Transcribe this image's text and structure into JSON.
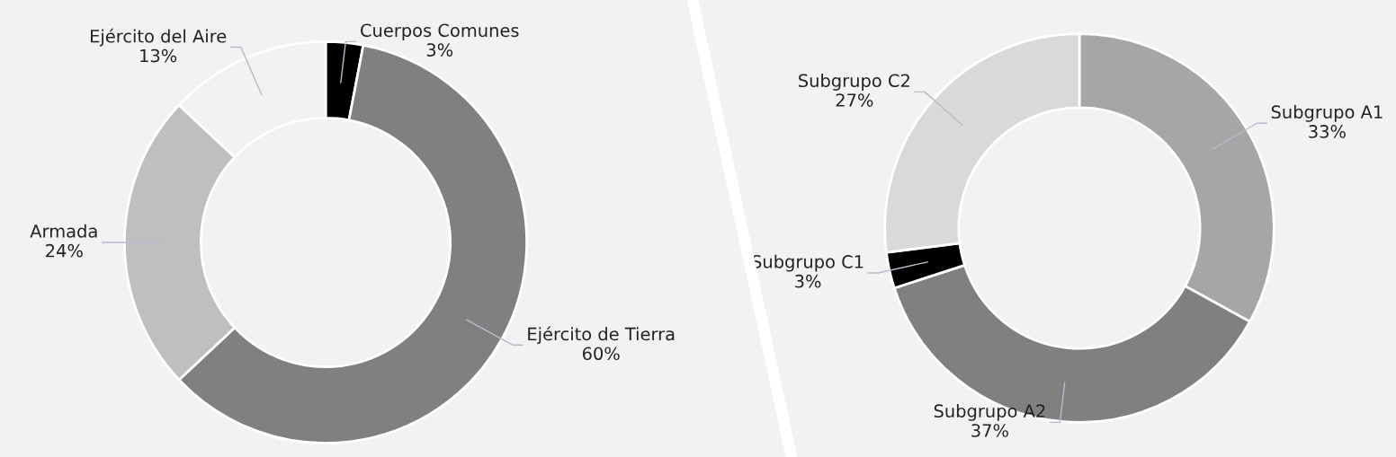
{
  "chart_data": [
    {
      "type": "donut",
      "categories": [
        "Cuerpos Comunes",
        "Ejército de Tierra",
        "Armada",
        "Ejército del Aire"
      ],
      "values": [
        3,
        60,
        24,
        13
      ],
      "value_labels": [
        "3%",
        "60%",
        "24%",
        "13%"
      ],
      "colors": [
        "#000000",
        "#808080",
        "#bfbfbf",
        "#f2f2f2"
      ],
      "legend": false
    },
    {
      "type": "donut",
      "categories": [
        "Subgrupo A1",
        "Subgrupo A2",
        "Subgrupo C1",
        "Subgrupo C2"
      ],
      "values": [
        33,
        37,
        3,
        27
      ],
      "value_labels": [
        "33%",
        "37%",
        "3%",
        "27%"
      ],
      "colors": [
        "#a6a6a6",
        "#808080",
        "#000000",
        "#d9d9d9"
      ],
      "legend": false
    }
  ]
}
